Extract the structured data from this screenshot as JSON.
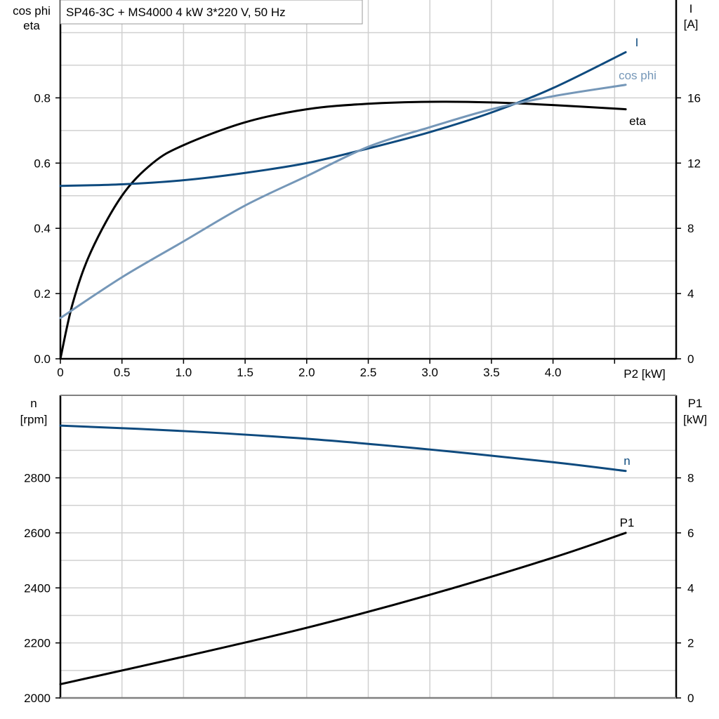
{
  "title": "SP46-3C + MS4000   4 kW   3*220 V, 50 Hz",
  "colors": {
    "I": "#0e4a7e",
    "cos_phi": "#7597b8",
    "eta": "#000000",
    "n": "#0e4a7e",
    "P1": "#000000",
    "grid": "#d0d0d0"
  },
  "chart_data": [
    {
      "type": "line",
      "xlabel": "P2 [kW]",
      "ylabel_left": [
        "cos phi",
        "eta"
      ],
      "ylabel_right": [
        "I",
        "[A]"
      ],
      "xlim": [
        0,
        5
      ],
      "ylim_left": [
        0,
        1.1
      ],
      "ylim_right": [
        0,
        22
      ],
      "x_ticks": [
        "0",
        "0.5",
        "1.0",
        "1.5",
        "2.0",
        "2.5",
        "3.0",
        "3.5",
        "4.0"
      ],
      "y_left_ticks": [
        "0.0",
        "0.2",
        "0.4",
        "0.6",
        "0.8"
      ],
      "y_right_ticks": [
        "0",
        "4",
        "8",
        "12",
        "16"
      ],
      "grid": true,
      "series": [
        {
          "name": "eta",
          "axis": "left",
          "x": [
            0,
            0.1,
            0.25,
            0.5,
            0.75,
            1.0,
            1.5,
            2.0,
            2.5,
            3.0,
            3.5,
            4.0,
            4.59
          ],
          "y": [
            0,
            0.17,
            0.33,
            0.5,
            0.6,
            0.655,
            0.725,
            0.765,
            0.782,
            0.788,
            0.786,
            0.778,
            0.765
          ]
        },
        {
          "name": "I",
          "axis": "right",
          "x": [
            0,
            0.5,
            1.0,
            1.5,
            2.0,
            2.5,
            3.0,
            3.5,
            4.0,
            4.59
          ],
          "y": [
            10.6,
            10.7,
            10.95,
            11.4,
            12.0,
            12.9,
            13.9,
            15.1,
            16.6,
            18.8
          ]
        },
        {
          "name": "cos phi",
          "axis": "left",
          "x": [
            0,
            0.5,
            1.0,
            1.5,
            2.0,
            2.5,
            3.0,
            3.5,
            4.0,
            4.59
          ],
          "y": [
            0.125,
            0.25,
            0.36,
            0.47,
            0.56,
            0.65,
            0.71,
            0.765,
            0.805,
            0.84
          ]
        }
      ]
    },
    {
      "type": "line",
      "xlim": [
        0,
        5
      ],
      "ylabel_left": [
        "n",
        "[rpm]"
      ],
      "ylabel_right": [
        "P1",
        "[kW]"
      ],
      "ylim_left": [
        2000,
        3100
      ],
      "ylim_right": [
        0,
        11
      ],
      "y_left_ticks": [
        "2000",
        "2200",
        "2400",
        "2600",
        "2800"
      ],
      "y_right_ticks": [
        "0",
        "2",
        "4",
        "6",
        "8"
      ],
      "grid": true,
      "series": [
        {
          "name": "n",
          "axis": "left",
          "x": [
            0,
            1.0,
            2.0,
            3.0,
            4.0,
            4.59
          ],
          "y": [
            2990,
            2970,
            2942,
            2903,
            2857,
            2825
          ]
        },
        {
          "name": "P1",
          "axis": "right",
          "x": [
            0,
            1.0,
            2.0,
            3.0,
            4.0,
            4.59
          ],
          "y": [
            0.5,
            1.5,
            2.55,
            3.75,
            5.1,
            6.0
          ]
        }
      ]
    }
  ]
}
